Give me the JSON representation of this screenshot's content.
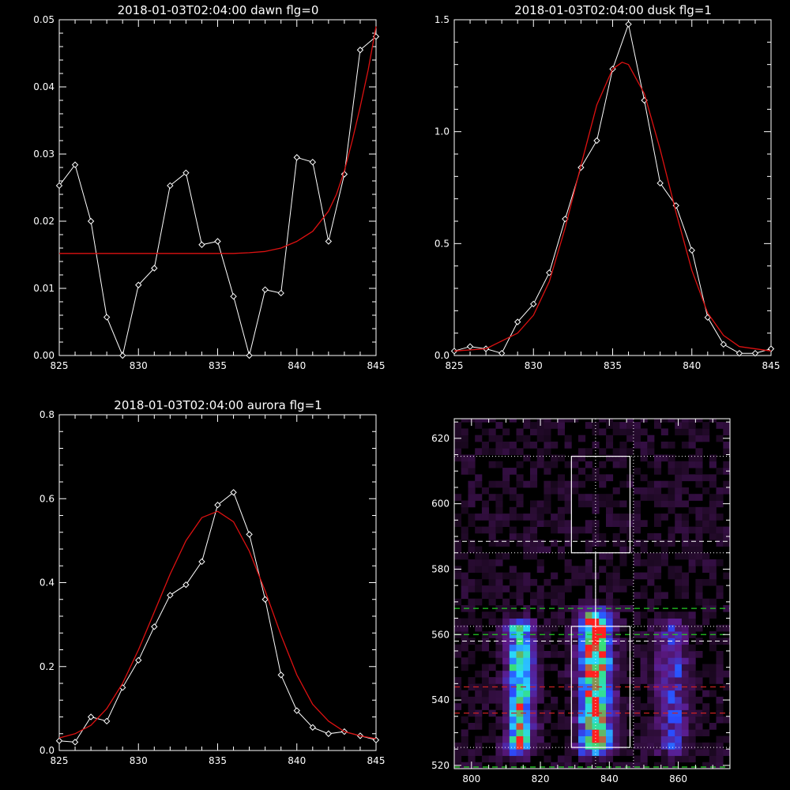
{
  "chart_data": [
    {
      "type": "line",
      "title": "2018-01-03T02:04:00 dawn flg=0",
      "xlim": [
        825,
        845
      ],
      "ylim": [
        0,
        0.05
      ],
      "x_ticks": [
        "825",
        "830",
        "835",
        "840",
        "845"
      ],
      "y_ticks": [
        "0.00",
        "0.01",
        "0.02",
        "0.03",
        "0.04",
        "0.05"
      ],
      "series": [
        {
          "style": "white-diamonds",
          "x": [
            825,
            826,
            827,
            828,
            829,
            830,
            831,
            832,
            833,
            834,
            835,
            836,
            837,
            838,
            839,
            840,
            841,
            842,
            843,
            844,
            845
          ],
          "values": [
            0.0253,
            0.0284,
            0.02,
            0.0057,
            0.0,
            0.0105,
            0.013,
            0.0253,
            0.0272,
            0.0165,
            0.017,
            0.0088,
            0.0,
            0.0098,
            0.0093,
            0.0295,
            0.0288,
            0.017,
            0.027,
            0.0455,
            0.0475
          ]
        },
        {
          "style": "red-fit",
          "x": [
            825,
            833,
            836,
            837,
            838,
            839,
            840,
            841,
            842,
            842.5,
            843,
            843.5,
            844,
            844.5,
            845
          ],
          "values": [
            0.0152,
            0.0152,
            0.0152,
            0.0153,
            0.0155,
            0.016,
            0.017,
            0.0185,
            0.0215,
            0.024,
            0.0275,
            0.032,
            0.037,
            0.0425,
            0.049
          ]
        }
      ]
    },
    {
      "type": "line",
      "title": "2018-01-03T02:04:00 dusk flg=1",
      "xlim": [
        825,
        845
      ],
      "ylim": [
        0,
        1.5
      ],
      "x_ticks": [
        "825",
        "830",
        "835",
        "840",
        "845"
      ],
      "y_ticks": [
        "0.0",
        "0.5",
        "1.0",
        "1.5"
      ],
      "series": [
        {
          "style": "white-diamonds",
          "x": [
            825,
            826,
            827,
            828,
            829,
            830,
            831,
            832,
            833,
            834,
            835,
            836,
            837,
            838,
            839,
            840,
            841,
            842,
            843,
            844,
            845
          ],
          "values": [
            0.02,
            0.04,
            0.03,
            0.01,
            0.15,
            0.23,
            0.37,
            0.61,
            0.84,
            0.96,
            1.28,
            1.48,
            1.14,
            0.77,
            0.67,
            0.47,
            0.17,
            0.05,
            0.01,
            0.01,
            0.03
          ]
        },
        {
          "style": "red-fit",
          "x": [
            825,
            827,
            829,
            830,
            831,
            832,
            833,
            834,
            835,
            835.6,
            836,
            837,
            838,
            839,
            840,
            841,
            842,
            843,
            845
          ],
          "values": [
            0.02,
            0.03,
            0.1,
            0.18,
            0.33,
            0.57,
            0.85,
            1.12,
            1.28,
            1.31,
            1.3,
            1.17,
            0.92,
            0.64,
            0.38,
            0.19,
            0.09,
            0.04,
            0.02
          ]
        }
      ]
    },
    {
      "type": "line",
      "title": "2018-01-03T02:04:00 aurora flg=1",
      "xlim": [
        825,
        845
      ],
      "ylim": [
        0,
        0.8
      ],
      "x_ticks": [
        "825",
        "830",
        "835",
        "840",
        "845"
      ],
      "y_ticks": [
        "0.0",
        "0.2",
        "0.4",
        "0.6",
        "0.8"
      ],
      "series": [
        {
          "style": "white-diamonds",
          "x": [
            825,
            826,
            827,
            828,
            829,
            830,
            831,
            832,
            833,
            834,
            835,
            836,
            837,
            838,
            839,
            840,
            841,
            842,
            843,
            844,
            845
          ],
          "values": [
            0.023,
            0.02,
            0.08,
            0.07,
            0.15,
            0.215,
            0.295,
            0.37,
            0.395,
            0.45,
            0.585,
            0.615,
            0.515,
            0.36,
            0.18,
            0.095,
            0.055,
            0.04,
            0.045,
            0.035,
            0.025
          ]
        },
        {
          "style": "red-fit",
          "x": [
            825,
            826,
            827,
            828,
            829,
            830,
            831,
            832,
            833,
            834,
            835,
            836,
            837,
            838,
            839,
            840,
            841,
            842,
            843,
            844,
            845
          ],
          "values": [
            0.03,
            0.04,
            0.06,
            0.1,
            0.16,
            0.24,
            0.33,
            0.42,
            0.5,
            0.555,
            0.57,
            0.545,
            0.475,
            0.38,
            0.275,
            0.18,
            0.11,
            0.07,
            0.045,
            0.035,
            0.028
          ]
        }
      ]
    },
    {
      "type": "heatmap",
      "title": "",
      "xlim": [
        795,
        875
      ],
      "ylim": [
        519,
        626
      ],
      "x_ticks": [
        "800",
        "820",
        "840",
        "860"
      ],
      "y_ticks": [
        "520",
        "540",
        "560",
        "580",
        "600",
        "620"
      ],
      "colors": {
        "dim": "#2a0c33",
        "mid": "#5d1a86",
        "blue": "#2a4dff",
        "cyan": "#2ad8ff",
        "green": "#36e07a",
        "peak": "#ff2020",
        "line_green": "#22cc22",
        "line_red": "#cc2222",
        "line_white": "#ffffff"
      },
      "emission_bands": [
        {
          "x_center": 814,
          "x_width": 9,
          "y_range": [
            526,
            562
          ],
          "level": "high"
        },
        {
          "x_center": 836,
          "x_width": 11,
          "y_range": [
            526,
            565
          ],
          "level": "very-high"
        },
        {
          "x_center": 858,
          "x_width": 11,
          "y_range": [
            526,
            562
          ],
          "level": "low"
        }
      ],
      "peak_point": {
        "x": 836,
        "y": 559
      },
      "boxes": [
        {
          "x_range": [
            829,
            846
          ],
          "y_range": [
            585,
            614.5
          ]
        },
        {
          "x_range": [
            829,
            846
          ],
          "y_range": [
            525.5,
            562.5
          ]
        }
      ],
      "connector_x": 836,
      "vertical_dotted": [
        836,
        847
      ],
      "horizontal_lines": [
        {
          "y": 614.5,
          "style": "white-dotted"
        },
        {
          "y": 588.5,
          "style": "white-dashed"
        },
        {
          "y": 585,
          "style": "white-dotted"
        },
        {
          "y": 568,
          "style": "green-dashed"
        },
        {
          "y": 562.5,
          "style": "white-dotted"
        },
        {
          "y": 560,
          "style": "green-dashed"
        },
        {
          "y": 558,
          "style": "white-dashed"
        },
        {
          "y": 544,
          "style": "red-dashed"
        },
        {
          "y": 536,
          "style": "red-dashed"
        },
        {
          "y": 525.5,
          "style": "white-dotted"
        },
        {
          "y": 519.5,
          "style": "green-dashed"
        }
      ]
    }
  ]
}
